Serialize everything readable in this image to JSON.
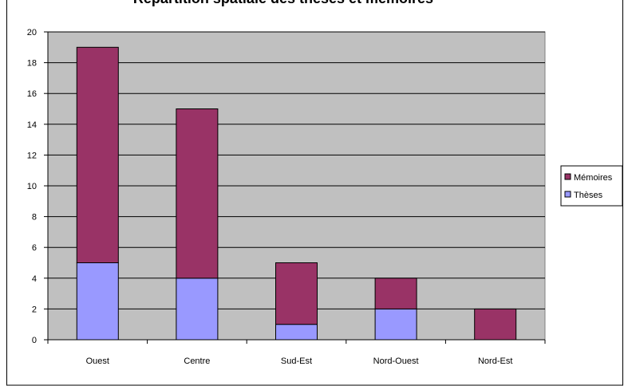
{
  "chart_data": {
    "type": "bar",
    "stacked": true,
    "title": "Répartition spatiale des thèses et mémoires",
    "categories": [
      "Ouest",
      "Centre",
      "Sud-Est",
      "Nord-Ouest",
      "Nord-Est"
    ],
    "series": [
      {
        "name": "Thèses",
        "color": "#9999ff",
        "values": [
          5,
          4,
          1,
          2,
          0
        ]
      },
      {
        "name": "Mémoires",
        "color": "#993366",
        "values": [
          14,
          11,
          4,
          2,
          2
        ]
      }
    ],
    "ylim": [
      0,
      20
    ],
    "yticks": [
      0,
      2,
      4,
      6,
      8,
      10,
      12,
      14,
      16,
      18,
      20
    ],
    "grid": true,
    "legend": "right"
  }
}
